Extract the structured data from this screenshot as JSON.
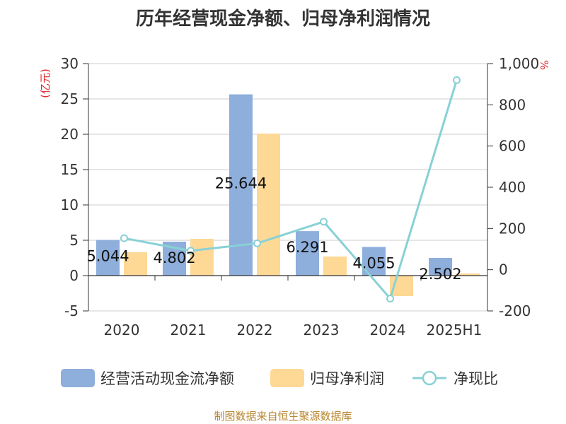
{
  "header": {
    "title": "历年经营现金净额、归母净利润情况"
  },
  "footer": {
    "source": "制图数据来自恒生聚源数据库"
  },
  "chart_data": {
    "type": "bar",
    "title": "历年经营现金净额、归母净利润情况",
    "categories": [
      "2020",
      "2021",
      "2022",
      "2023",
      "2024",
      "2025H1"
    ],
    "series": [
      {
        "name": "经营活动现金流净额",
        "type": "bar",
        "axis": "left",
        "color": "#8eaedb",
        "values": [
          5.044,
          4.802,
          25.644,
          6.291,
          4.055,
          2.502
        ],
        "labels": [
          "5.044",
          "4.802",
          "25.644",
          "6.291",
          "4.055",
          "2.502"
        ]
      },
      {
        "name": "归母净利润",
        "type": "bar",
        "axis": "left",
        "color": "#fed895",
        "values": [
          3.3,
          5.2,
          20.1,
          2.7,
          -2.9,
          0.3
        ]
      },
      {
        "name": "净现比",
        "type": "line",
        "axis": "right",
        "color": "#88d1d6",
        "values": [
          153,
          92,
          128,
          233,
          -140,
          920
        ]
      }
    ],
    "y_left": {
      "label": "(亿元)",
      "ylim": [
        -5,
        30
      ],
      "ticks": [
        "-5",
        "0",
        "5",
        "10",
        "15",
        "20",
        "25",
        "30"
      ]
    },
    "y_right": {
      "label": "%",
      "ylim": [
        -200,
        1000
      ],
      "ticks": [
        "-200",
        "0",
        "200",
        "400",
        "600",
        "800",
        "1,000"
      ]
    },
    "grid": true,
    "legend": "bottom"
  }
}
